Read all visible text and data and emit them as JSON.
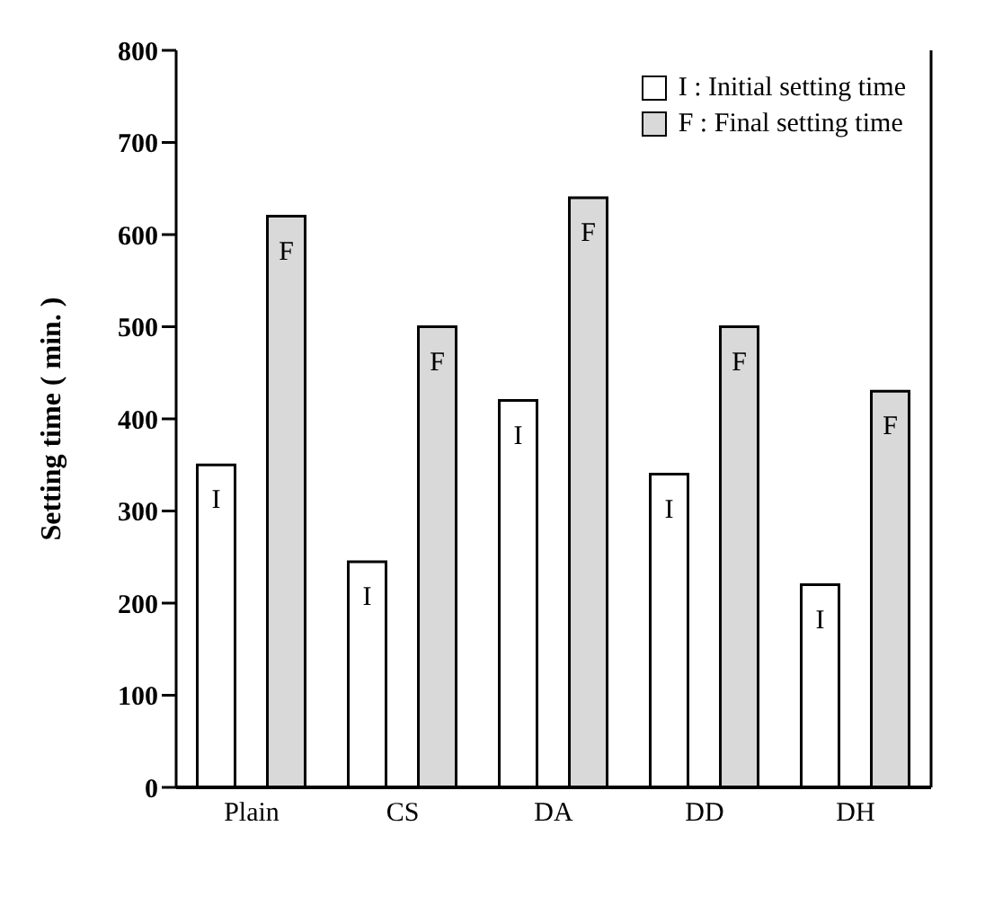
{
  "chart_data": {
    "type": "bar",
    "ylabel": "Setting time ( min. )",
    "categories": [
      "Plain",
      "CS",
      "DA",
      "DD",
      "DH"
    ],
    "series": [
      {
        "name": "I : Initial setting time",
        "color": "#ffffff",
        "values": [
          350,
          245,
          420,
          340,
          220
        ],
        "value_labels": [
          "I",
          "I",
          "I",
          "I",
          "I"
        ]
      },
      {
        "name": "F : Final setting time",
        "color": "#d9d9d9",
        "values": [
          620,
          500,
          640,
          500,
          430
        ],
        "value_labels": [
          "F",
          "F",
          "F",
          "F",
          "F"
        ]
      }
    ],
    "ylim": [
      0,
      800
    ],
    "yticks": [
      0,
      100,
      200,
      300,
      400,
      500,
      600,
      700,
      800
    ],
    "grid": false,
    "legend": "top right"
  }
}
